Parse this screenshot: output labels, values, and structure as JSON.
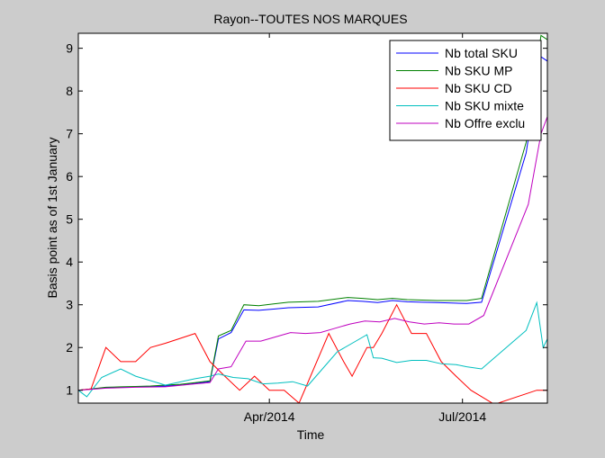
{
  "chart_data": {
    "type": "line",
    "title": "Rayon--TOUTES NOS MARQUES",
    "xlabel": "Time",
    "ylabel": "Basis point as of 1st January",
    "xlim": [
      "2014-01-01",
      "2014-08-10"
    ],
    "ylim": [
      0.7,
      9.35
    ],
    "yticks": [
      1,
      2,
      3,
      4,
      5,
      6,
      7,
      8,
      9
    ],
    "xticks": [
      {
        "date": "2014-04-01",
        "label": "Apr/2014"
      },
      {
        "date": "2014-07-01",
        "label": "Jul/2014"
      }
    ],
    "grid": false,
    "legend_position": "top-right",
    "series": [
      {
        "name": "Nb total SKU",
        "color": "#0000ff",
        "points": [
          [
            "2014-01-01",
            1.0
          ],
          [
            "2014-01-07",
            1.03
          ],
          [
            "2014-01-14",
            1.06
          ],
          [
            "2014-01-21",
            1.07
          ],
          [
            "2014-01-28",
            1.08
          ],
          [
            "2014-02-04",
            1.09
          ],
          [
            "2014-02-11",
            1.1
          ],
          [
            "2014-02-18",
            1.12
          ],
          [
            "2014-02-25",
            1.16
          ],
          [
            "2014-03-04",
            1.2
          ],
          [
            "2014-03-08",
            2.2
          ],
          [
            "2014-03-14",
            2.35
          ],
          [
            "2014-03-20",
            2.88
          ],
          [
            "2014-03-27",
            2.87
          ],
          [
            "2014-04-03",
            2.9
          ],
          [
            "2014-04-10",
            2.93
          ],
          [
            "2014-04-24",
            2.95
          ],
          [
            "2014-05-08",
            3.1
          ],
          [
            "2014-05-15",
            3.08
          ],
          [
            "2014-05-22",
            3.05
          ],
          [
            "2014-05-29",
            3.1
          ],
          [
            "2014-06-05",
            3.07
          ],
          [
            "2014-06-12",
            3.06
          ],
          [
            "2014-06-19",
            3.05
          ],
          [
            "2014-06-26",
            3.04
          ],
          [
            "2014-07-03",
            3.03
          ],
          [
            "2014-07-10",
            3.06
          ],
          [
            "2014-07-31",
            6.55
          ],
          [
            "2014-08-07",
            8.8
          ],
          [
            "2014-08-10",
            8.7
          ]
        ]
      },
      {
        "name": "Nb SKU MP",
        "color": "#008000",
        "points": [
          [
            "2014-01-01",
            1.0
          ],
          [
            "2014-01-07",
            1.03
          ],
          [
            "2014-01-14",
            1.07
          ],
          [
            "2014-01-21",
            1.08
          ],
          [
            "2014-01-28",
            1.09
          ],
          [
            "2014-02-04",
            1.1
          ],
          [
            "2014-02-11",
            1.12
          ],
          [
            "2014-02-18",
            1.14
          ],
          [
            "2014-02-25",
            1.18
          ],
          [
            "2014-03-04",
            1.22
          ],
          [
            "2014-03-08",
            2.27
          ],
          [
            "2014-03-14",
            2.4
          ],
          [
            "2014-03-20",
            3.0
          ],
          [
            "2014-03-27",
            2.98
          ],
          [
            "2014-04-03",
            3.02
          ],
          [
            "2014-04-10",
            3.06
          ],
          [
            "2014-04-24",
            3.08
          ],
          [
            "2014-05-08",
            3.17
          ],
          [
            "2014-05-15",
            3.15
          ],
          [
            "2014-05-22",
            3.12
          ],
          [
            "2014-05-29",
            3.15
          ],
          [
            "2014-06-05",
            3.12
          ],
          [
            "2014-06-12",
            3.11
          ],
          [
            "2014-06-19",
            3.1
          ],
          [
            "2014-06-26",
            3.1
          ],
          [
            "2014-07-03",
            3.1
          ],
          [
            "2014-07-10",
            3.15
          ],
          [
            "2014-07-31",
            6.8
          ],
          [
            "2014-08-07",
            9.3
          ],
          [
            "2014-08-10",
            9.2
          ]
        ]
      },
      {
        "name": "Nb SKU CD",
        "color": "#ff0000",
        "points": [
          [
            "2014-01-01",
            1.0
          ],
          [
            "2014-01-07",
            1.03
          ],
          [
            "2014-01-14",
            2.0
          ],
          [
            "2014-01-21",
            1.67
          ],
          [
            "2014-01-28",
            1.67
          ],
          [
            "2014-02-04",
            2.0
          ],
          [
            "2014-02-11",
            2.1
          ],
          [
            "2014-02-25",
            2.33
          ],
          [
            "2014-03-04",
            1.67
          ],
          [
            "2014-03-11",
            1.33
          ],
          [
            "2014-03-18",
            1.0
          ],
          [
            "2014-03-25",
            1.33
          ],
          [
            "2014-04-01",
            1.0
          ],
          [
            "2014-04-08",
            1.0
          ],
          [
            "2014-04-15",
            0.7
          ],
          [
            "2014-04-29",
            2.33
          ],
          [
            "2014-05-06",
            1.67
          ],
          [
            "2014-05-10",
            1.33
          ],
          [
            "2014-05-17",
            2.0
          ],
          [
            "2014-05-20",
            2.0
          ],
          [
            "2014-05-24",
            2.33
          ],
          [
            "2014-05-31",
            3.0
          ],
          [
            "2014-06-07",
            2.33
          ],
          [
            "2014-06-14",
            2.33
          ],
          [
            "2014-06-21",
            1.67
          ],
          [
            "2014-06-28",
            1.33
          ],
          [
            "2014-07-05",
            1.0
          ],
          [
            "2014-07-16",
            0.67
          ],
          [
            "2014-08-05",
            1.0
          ],
          [
            "2014-08-10",
            1.0
          ]
        ]
      },
      {
        "name": "Nb SKU mixte",
        "color": "#00bfbf",
        "points": [
          [
            "2014-01-01",
            1.0
          ],
          [
            "2014-01-05",
            0.85
          ],
          [
            "2014-01-12",
            1.3
          ],
          [
            "2014-01-21",
            1.5
          ],
          [
            "2014-01-28",
            1.33
          ],
          [
            "2014-02-11",
            1.12
          ],
          [
            "2014-02-25",
            1.27
          ],
          [
            "2014-03-04",
            1.33
          ],
          [
            "2014-03-08",
            1.38
          ],
          [
            "2014-03-15",
            1.3
          ],
          [
            "2014-03-22",
            1.27
          ],
          [
            "2014-03-29",
            1.15
          ],
          [
            "2014-04-05",
            1.17
          ],
          [
            "2014-04-12",
            1.2
          ],
          [
            "2014-04-19",
            1.1
          ],
          [
            "2014-05-03",
            1.9
          ],
          [
            "2014-05-10",
            2.1
          ],
          [
            "2014-05-17",
            2.3
          ],
          [
            "2014-05-20",
            1.76
          ],
          [
            "2014-05-24",
            1.75
          ],
          [
            "2014-05-31",
            1.65
          ],
          [
            "2014-06-07",
            1.7
          ],
          [
            "2014-06-14",
            1.7
          ],
          [
            "2014-06-21",
            1.62
          ],
          [
            "2014-06-28",
            1.6
          ],
          [
            "2014-07-03",
            1.55
          ],
          [
            "2014-07-10",
            1.5
          ],
          [
            "2014-07-31",
            2.4
          ],
          [
            "2014-08-05",
            3.05
          ],
          [
            "2014-08-08",
            2.0
          ],
          [
            "2014-08-10",
            2.2
          ]
        ]
      },
      {
        "name": "Nb Offre exclu",
        "color": "#bf00bf",
        "points": [
          [
            "2014-01-01",
            1.0
          ],
          [
            "2014-01-07",
            1.02
          ],
          [
            "2014-01-14",
            1.05
          ],
          [
            "2014-01-28",
            1.07
          ],
          [
            "2014-02-11",
            1.08
          ],
          [
            "2014-02-25",
            1.15
          ],
          [
            "2014-03-04",
            1.18
          ],
          [
            "2014-03-08",
            1.5
          ],
          [
            "2014-03-14",
            1.55
          ],
          [
            "2014-03-21",
            2.15
          ],
          [
            "2014-03-28",
            2.15
          ],
          [
            "2014-04-04",
            2.25
          ],
          [
            "2014-04-11",
            2.35
          ],
          [
            "2014-04-18",
            2.33
          ],
          [
            "2014-04-25",
            2.35
          ],
          [
            "2014-05-02",
            2.45
          ],
          [
            "2014-05-09",
            2.55
          ],
          [
            "2014-05-16",
            2.62
          ],
          [
            "2014-05-23",
            2.6
          ],
          [
            "2014-05-30",
            2.68
          ],
          [
            "2014-06-06",
            2.6
          ],
          [
            "2014-06-13",
            2.55
          ],
          [
            "2014-06-20",
            2.58
          ],
          [
            "2014-06-27",
            2.55
          ],
          [
            "2014-07-04",
            2.55
          ],
          [
            "2014-07-11",
            2.75
          ],
          [
            "2014-08-01",
            5.35
          ],
          [
            "2014-08-07",
            7.0
          ],
          [
            "2014-08-10",
            7.4
          ]
        ]
      }
    ]
  }
}
